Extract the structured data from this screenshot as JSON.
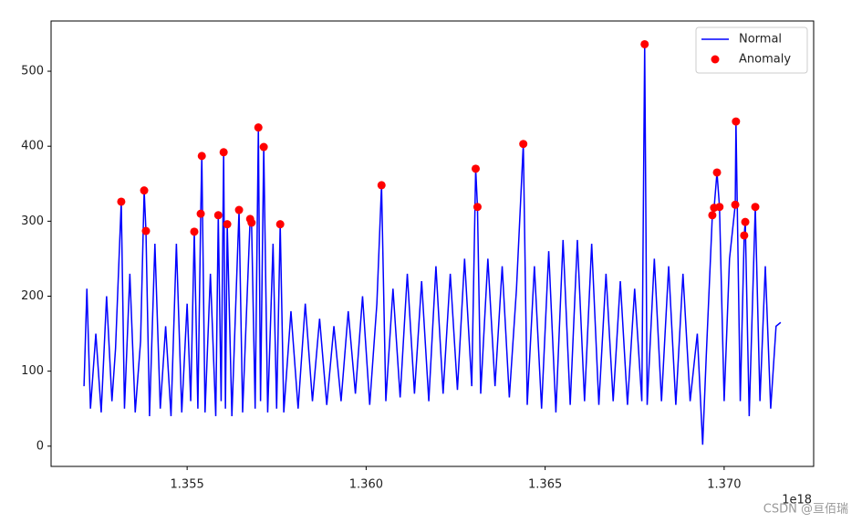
{
  "chart_data": {
    "type": "line",
    "x_offset_label": "1e18",
    "watermark": "CSDN @亘佰瑞",
    "xlim": [
      1.3512,
      1.3725
    ],
    "ylim": [
      -27,
      567
    ],
    "xticks": [
      1.355,
      {
        "value": 1.36,
        "label": "1.360"
      },
      1.365,
      {
        "value": 1.37,
        "label": "1.370"
      }
    ],
    "yticks": [
      0,
      100,
      200,
      300,
      400,
      500
    ],
    "legend": "upper right",
    "series": [
      {
        "name": "Normal",
        "color": "blue",
        "type": "line",
        "x": [
          1.35212,
          1.3522,
          1.3523,
          1.35245,
          1.3526,
          1.35275,
          1.3529,
          1.353,
          1.35316,
          1.35325,
          1.3534,
          1.35355,
          1.3537,
          1.3538,
          1.35385,
          1.35395,
          1.3541,
          1.35425,
          1.3544,
          1.35455,
          1.3547,
          1.35485,
          1.355,
          1.3551,
          1.3552,
          1.3553,
          1.35538,
          1.35541,
          1.3555,
          1.35565,
          1.3558,
          1.35587,
          1.35595,
          1.35602,
          1.35607,
          1.35612,
          1.35625,
          1.35645,
          1.35655,
          1.35676,
          1.3568,
          1.3569,
          1.35699,
          1.35705,
          1.35714,
          1.35725,
          1.3574,
          1.3575,
          1.3576,
          1.3577,
          1.3579,
          1.3581,
          1.3583,
          1.3585,
          1.3587,
          1.3589,
          1.3591,
          1.3593,
          1.3595,
          1.3597,
          1.3599,
          1.3601,
          1.3603,
          1.36043,
          1.36055,
          1.36075,
          1.36095,
          1.36115,
          1.36135,
          1.36155,
          1.36175,
          1.36195,
          1.36215,
          1.36235,
          1.36255,
          1.36275,
          1.36295,
          1.36306,
          1.36311,
          1.3632,
          1.3634,
          1.3636,
          1.3638,
          1.364,
          1.3642,
          1.36439,
          1.3645,
          1.3647,
          1.3649,
          1.3651,
          1.3653,
          1.3655,
          1.3657,
          1.3659,
          1.3661,
          1.3663,
          1.3665,
          1.3667,
          1.3669,
          1.3671,
          1.3673,
          1.3675,
          1.3677,
          1.36778,
          1.36785,
          1.36805,
          1.36825,
          1.36845,
          1.36865,
          1.36885,
          1.36905,
          1.36925,
          1.3694,
          1.3695,
          1.36967,
          1.36972,
          1.3698,
          1.36987,
          1.37,
          1.37015,
          1.37031,
          1.37033,
          1.37045,
          1.37056,
          1.37059,
          1.3707,
          1.37087,
          1.371,
          1.37115,
          1.3713,
          1.37145,
          1.37158
        ],
        "values": [
          80,
          210,
          50,
          150,
          45,
          200,
          60,
          130,
          326,
          50,
          230,
          45,
          140,
          341,
          287,
          40,
          270,
          50,
          160,
          40,
          270,
          45,
          190,
          60,
          286,
          50,
          310,
          387,
          45,
          230,
          40,
          308,
          60,
          392,
          50,
          296,
          40,
          315,
          45,
          303,
          298,
          50,
          425,
          60,
          399,
          45,
          270,
          50,
          296,
          45,
          180,
          50,
          190,
          60,
          170,
          55,
          160,
          60,
          180,
          70,
          200,
          55,
          190,
          348,
          60,
          210,
          65,
          230,
          70,
          220,
          60,
          240,
          70,
          230,
          75,
          250,
          80,
          370,
          319,
          70,
          250,
          80,
          240,
          65,
          210,
          403,
          55,
          240,
          50,
          260,
          45,
          275,
          55,
          275,
          60,
          270,
          55,
          230,
          60,
          220,
          55,
          210,
          60,
          536,
          55,
          250,
          60,
          240,
          55,
          230,
          60,
          150,
          2,
          120,
          308,
          318,
          365,
          319,
          60,
          250,
          322,
          433,
          60,
          281,
          299,
          40,
          319,
          60,
          240,
          50,
          160,
          165
        ]
      },
      {
        "name": "Anomaly",
        "color": "red",
        "type": "scatter",
        "x": [
          1.35316,
          1.3538,
          1.35385,
          1.3552,
          1.35538,
          1.35541,
          1.35587,
          1.35602,
          1.35612,
          1.35645,
          1.35676,
          1.3568,
          1.35699,
          1.35714,
          1.3576,
          1.36043,
          1.36306,
          1.36311,
          1.36439,
          1.36778,
          1.36967,
          1.36972,
          1.3698,
          1.36987,
          1.37031,
          1.37033,
          1.37056,
          1.37059,
          1.37087
        ],
        "values": [
          326,
          341,
          287,
          286,
          310,
          387,
          308,
          392,
          296,
          315,
          303,
          298,
          425,
          399,
          296,
          348,
          370,
          319,
          403,
          536,
          308,
          318,
          365,
          319,
          322,
          433,
          281,
          299,
          319
        ]
      }
    ]
  }
}
